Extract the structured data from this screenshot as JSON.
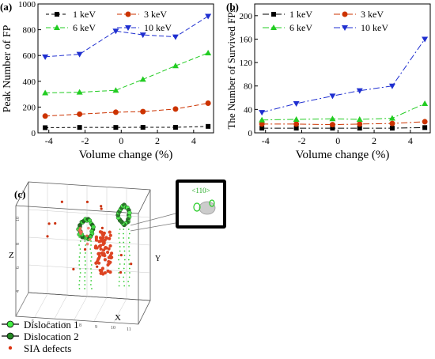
{
  "chart_data": [
    {
      "panel": "(a)",
      "type": "line",
      "ylabel": "Peak Number of FP",
      "xlabel": "Volume change (%)",
      "xlim": [
        -4.6,
        5.1
      ],
      "ylim": [
        0,
        1000
      ],
      "xticks": [
        -4,
        -2,
        0,
        2,
        4
      ],
      "yticks": [
        0,
        200,
        400,
        600,
        800,
        1000
      ],
      "legend_position": "top",
      "x": [
        -4.2,
        -2.3,
        -0.3,
        1.2,
        3.0,
        4.8
      ],
      "series": [
        {
          "name": "1 keV",
          "color": "#000000",
          "marker": "square",
          "dash": "4,3",
          "values": [
            40,
            42,
            42,
            43,
            43,
            50
          ]
        },
        {
          "name": "3 keV",
          "color": "#cc3300",
          "marker": "circle",
          "dash": "6,3",
          "values": [
            130,
            145,
            160,
            165,
            185,
            230
          ]
        },
        {
          "name": "6 keV",
          "color": "#22cc22",
          "marker": "triangle-up",
          "dash": "6,3",
          "values": [
            310,
            315,
            330,
            415,
            520,
            620
          ]
        },
        {
          "name": "10 keV",
          "color": "#1f2fd0",
          "marker": "triangle-down",
          "dash": "6,3",
          "values": [
            590,
            610,
            790,
            760,
            745,
            905
          ]
        }
      ]
    },
    {
      "panel": "(b)",
      "type": "line",
      "ylabel": "The Number of Survived FPs",
      "xlabel": "Volume change (%)",
      "xlim": [
        -4.6,
        5.1
      ],
      "ylim": [
        0,
        220
      ],
      "xticks": [
        -4,
        -2,
        0,
        2,
        4
      ],
      "yticks": [
        0,
        40,
        80,
        120,
        160,
        200
      ],
      "legend_position": "top",
      "x": [
        -4.2,
        -2.3,
        -0.3,
        1.2,
        3.0,
        4.8
      ],
      "series": [
        {
          "name": "1 keV",
          "color": "#000000",
          "marker": "square",
          "dash": "8,3,2,3",
          "values": [
            8,
            8,
            8,
            8,
            8,
            9
          ]
        },
        {
          "name": "3 keV",
          "color": "#cc3300",
          "marker": "circle",
          "dash": "8,3,2,3",
          "values": [
            15,
            15,
            14,
            15,
            16,
            19
          ]
        },
        {
          "name": "6 keV",
          "color": "#22cc22",
          "marker": "triangle-up",
          "dash": "8,3,2,3",
          "values": [
            22,
            23,
            24,
            23,
            25,
            50
          ]
        },
        {
          "name": "10 keV",
          "color": "#1f2fd0",
          "marker": "triangle-down",
          "dash": "8,3,2,3",
          "values": [
            35,
            50,
            63,
            72,
            80,
            160
          ]
        }
      ]
    }
  ],
  "panel_c": {
    "label": "(c)",
    "axis_x": "X",
    "axis_y": "Y",
    "axis_z": "Z",
    "inset_label": "<110>",
    "legend": [
      {
        "name": "Dislocation 1",
        "color": "#44ee44"
      },
      {
        "name": "Dislocation 2",
        "color": "#228822"
      },
      {
        "name": "SIA defects",
        "color": "#dd3311"
      }
    ]
  }
}
